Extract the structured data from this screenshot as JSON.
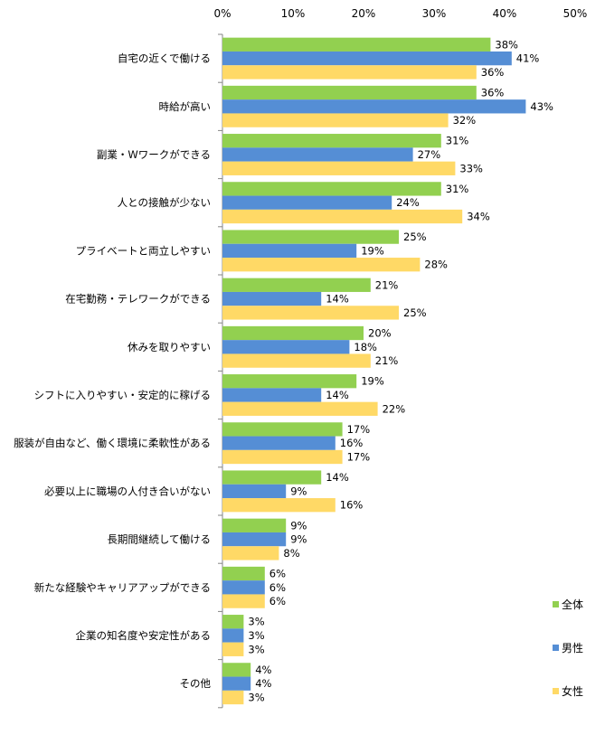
{
  "chart_data": {
    "type": "bar",
    "orientation": "horizontal",
    "title": "",
    "xlabel": "",
    "ylabel": "",
    "xlim": [
      0,
      50
    ],
    "x_ticks": [
      "0%",
      "10%",
      "20%",
      "30%",
      "40%",
      "50%"
    ],
    "x_tick_values": [
      0,
      10,
      20,
      30,
      40,
      50
    ],
    "grid": false,
    "legend_position": "bottom-right",
    "categories": [
      "自宅の近くで働ける",
      "時給が高い",
      "副業・Wワークができる",
      "人との接触が少ない",
      "プライベートと両立しやすい",
      "在宅勤務・テレワークができる",
      "休みを取りやすい",
      "シフトに入りやすい・安定的に稼げる",
      "服装が自由など、働く環境に柔軟性がある",
      "必要以上に職場の人付き合いがない",
      "長期間継続して働ける",
      "新たな経験やキャリアアップができる",
      "企業の知名度や安定性がある",
      "その他"
    ],
    "series": [
      {
        "name": "全体",
        "color": "#92D050",
        "values": [
          38,
          36,
          31,
          31,
          25,
          21,
          20,
          19,
          17,
          14,
          9,
          6,
          3,
          4
        ]
      },
      {
        "name": "男性",
        "color": "#558ED5",
        "values": [
          41,
          43,
          27,
          24,
          19,
          14,
          18,
          14,
          16,
          9,
          9,
          6,
          3,
          4
        ]
      },
      {
        "name": "女性",
        "color": "#FFD966",
        "values": [
          36,
          32,
          33,
          34,
          28,
          25,
          21,
          22,
          17,
          16,
          8,
          6,
          3,
          3
        ]
      }
    ],
    "value_suffix": "%"
  }
}
